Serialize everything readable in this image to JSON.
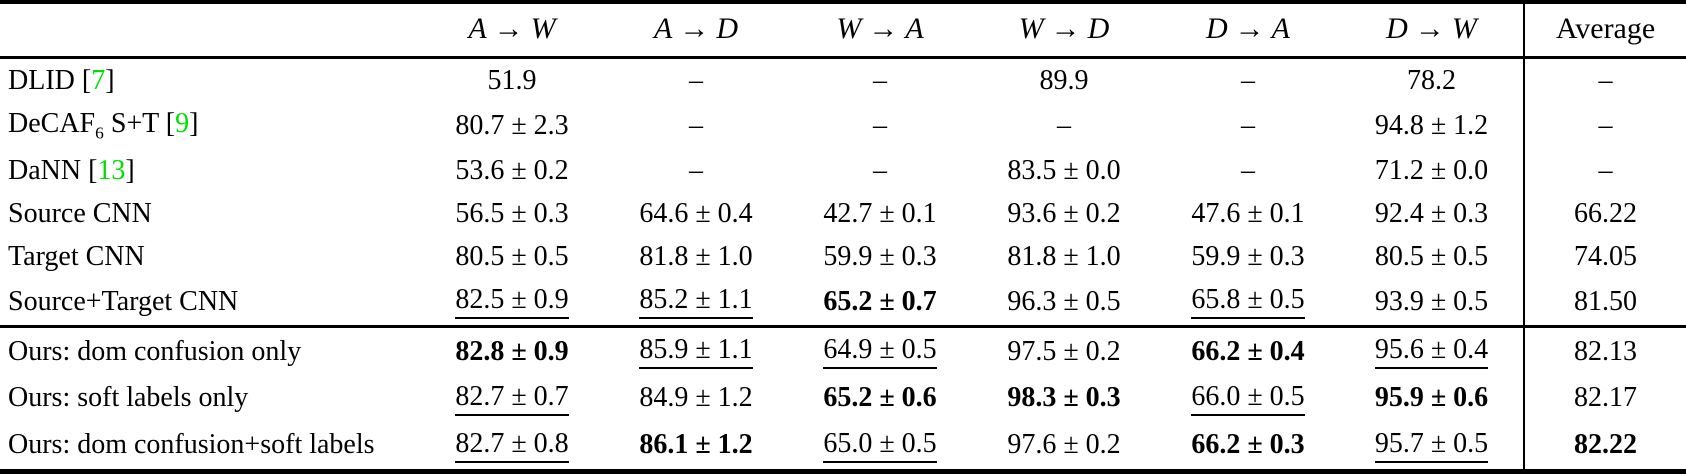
{
  "table": {
    "header": {
      "arrow": "→",
      "transfer_columns": [
        {
          "from": "A",
          "to": "W"
        },
        {
          "from": "A",
          "to": "D"
        },
        {
          "from": "W",
          "to": "A"
        },
        {
          "from": "W",
          "to": "D"
        },
        {
          "from": "D",
          "to": "A"
        },
        {
          "from": "D",
          "to": "W"
        }
      ],
      "average_label": "Average"
    },
    "colors": {
      "citation_green": "#00e000",
      "text": "#000000",
      "background": "#ffffff"
    },
    "sections": [
      {
        "name": "baselines",
        "rows": [
          {
            "label": [
              {
                "type": "text",
                "text": "DLID ["
              },
              {
                "type": "cite",
                "text": "7"
              },
              {
                "type": "text",
                "text": "]"
              }
            ],
            "cells": [
              {
                "text": "51.9",
                "style": "plain"
              },
              {
                "text": "–",
                "style": "plain"
              },
              {
                "text": "–",
                "style": "plain"
              },
              {
                "text": "89.9",
                "style": "plain"
              },
              {
                "text": "–",
                "style": "plain"
              },
              {
                "text": "78.2",
                "style": "plain"
              },
              {
                "text": "–",
                "style": "plain"
              }
            ]
          },
          {
            "label": [
              {
                "type": "text",
                "text": "DeCAF"
              },
              {
                "type": "sub",
                "text": "6"
              },
              {
                "type": "text",
                "text": " S+T ["
              },
              {
                "type": "cite",
                "text": "9"
              },
              {
                "type": "text",
                "text": "]"
              }
            ],
            "cells": [
              {
                "text": "80.7 ± 2.3",
                "style": "plain"
              },
              {
                "text": "–",
                "style": "plain"
              },
              {
                "text": "–",
                "style": "plain"
              },
              {
                "text": "–",
                "style": "plain"
              },
              {
                "text": "–",
                "style": "plain"
              },
              {
                "text": "94.8 ± 1.2",
                "style": "plain"
              },
              {
                "text": "–",
                "style": "plain"
              }
            ]
          },
          {
            "label": [
              {
                "type": "text",
                "text": "DaNN ["
              },
              {
                "type": "cite",
                "text": "13"
              },
              {
                "type": "text",
                "text": "]"
              }
            ],
            "cells": [
              {
                "text": "53.6 ± 0.2",
                "style": "plain"
              },
              {
                "text": "–",
                "style": "plain"
              },
              {
                "text": "–",
                "style": "plain"
              },
              {
                "text": "83.5 ± 0.0",
                "style": "plain"
              },
              {
                "text": "–",
                "style": "plain"
              },
              {
                "text": "71.2 ± 0.0",
                "style": "plain"
              },
              {
                "text": "–",
                "style": "plain"
              }
            ]
          },
          {
            "label": [
              {
                "type": "text",
                "text": "Source CNN"
              }
            ],
            "cells": [
              {
                "text": "56.5 ± 0.3",
                "style": "plain"
              },
              {
                "text": "64.6 ± 0.4",
                "style": "plain"
              },
              {
                "text": "42.7 ± 0.1",
                "style": "plain"
              },
              {
                "text": "93.6 ± 0.2",
                "style": "plain"
              },
              {
                "text": "47.6 ± 0.1",
                "style": "plain"
              },
              {
                "text": "92.4 ± 0.3",
                "style": "plain"
              },
              {
                "text": "66.22",
                "style": "plain"
              }
            ]
          },
          {
            "label": [
              {
                "type": "text",
                "text": "Target CNN"
              }
            ],
            "cells": [
              {
                "text": "80.5 ± 0.5",
                "style": "plain"
              },
              {
                "text": "81.8 ± 1.0",
                "style": "plain"
              },
              {
                "text": "59.9 ± 0.3",
                "style": "plain"
              },
              {
                "text": "81.8 ± 1.0",
                "style": "plain"
              },
              {
                "text": "59.9 ± 0.3",
                "style": "plain"
              },
              {
                "text": "80.5 ± 0.5",
                "style": "plain"
              },
              {
                "text": "74.05",
                "style": "plain"
              }
            ]
          },
          {
            "label": [
              {
                "type": "text",
                "text": "Source+Target CNN"
              }
            ],
            "cells": [
              {
                "text": "82.5 ± 0.9",
                "style": "underline"
              },
              {
                "text": "85.2 ± 1.1",
                "style": "underline"
              },
              {
                "text": "65.2 ± 0.7",
                "style": "bold"
              },
              {
                "text": "96.3 ± 0.5",
                "style": "plain"
              },
              {
                "text": "65.8 ± 0.5",
                "style": "underline"
              },
              {
                "text": "93.9 ± 0.5",
                "style": "plain"
              },
              {
                "text": "81.50",
                "style": "plain"
              }
            ]
          }
        ]
      },
      {
        "name": "ours",
        "rows": [
          {
            "label": [
              {
                "type": "text",
                "text": "Ours: dom confusion only"
              }
            ],
            "cells": [
              {
                "text": "82.8 ± 0.9",
                "style": "bold"
              },
              {
                "text": "85.9 ± 1.1",
                "style": "underline"
              },
              {
                "text": "64.9 ± 0.5",
                "style": "underline"
              },
              {
                "text": "97.5 ± 0.2",
                "style": "plain"
              },
              {
                "text": "66.2 ± 0.4",
                "style": "bold"
              },
              {
                "text": "95.6 ± 0.4",
                "style": "underline"
              },
              {
                "text": "82.13",
                "style": "plain"
              }
            ]
          },
          {
            "label": [
              {
                "type": "text",
                "text": "Ours: soft labels only"
              }
            ],
            "cells": [
              {
                "text": "82.7 ± 0.7",
                "style": "underline"
              },
              {
                "text": "84.9 ± 1.2",
                "style": "plain"
              },
              {
                "text": "65.2 ± 0.6",
                "style": "bold"
              },
              {
                "text": "98.3 ± 0.3",
                "style": "bold"
              },
              {
                "text": "66.0 ± 0.5",
                "style": "underline"
              },
              {
                "text": "95.9 ± 0.6",
                "style": "bold"
              },
              {
                "text": "82.17",
                "style": "plain"
              }
            ]
          },
          {
            "label": [
              {
                "type": "text",
                "text": "Ours: dom confusion+soft labels"
              }
            ],
            "cells": [
              {
                "text": "82.7 ± 0.8",
                "style": "underline"
              },
              {
                "text": "86.1 ± 1.2",
                "style": "bold"
              },
              {
                "text": "65.0 ± 0.5",
                "style": "underline"
              },
              {
                "text": "97.6 ± 0.2",
                "style": "plain"
              },
              {
                "text": "66.2 ± 0.3",
                "style": "bold"
              },
              {
                "text": "95.7 ± 0.5",
                "style": "underline"
              },
              {
                "text": "82.22",
                "style": "bold"
              }
            ]
          }
        ]
      }
    ]
  }
}
